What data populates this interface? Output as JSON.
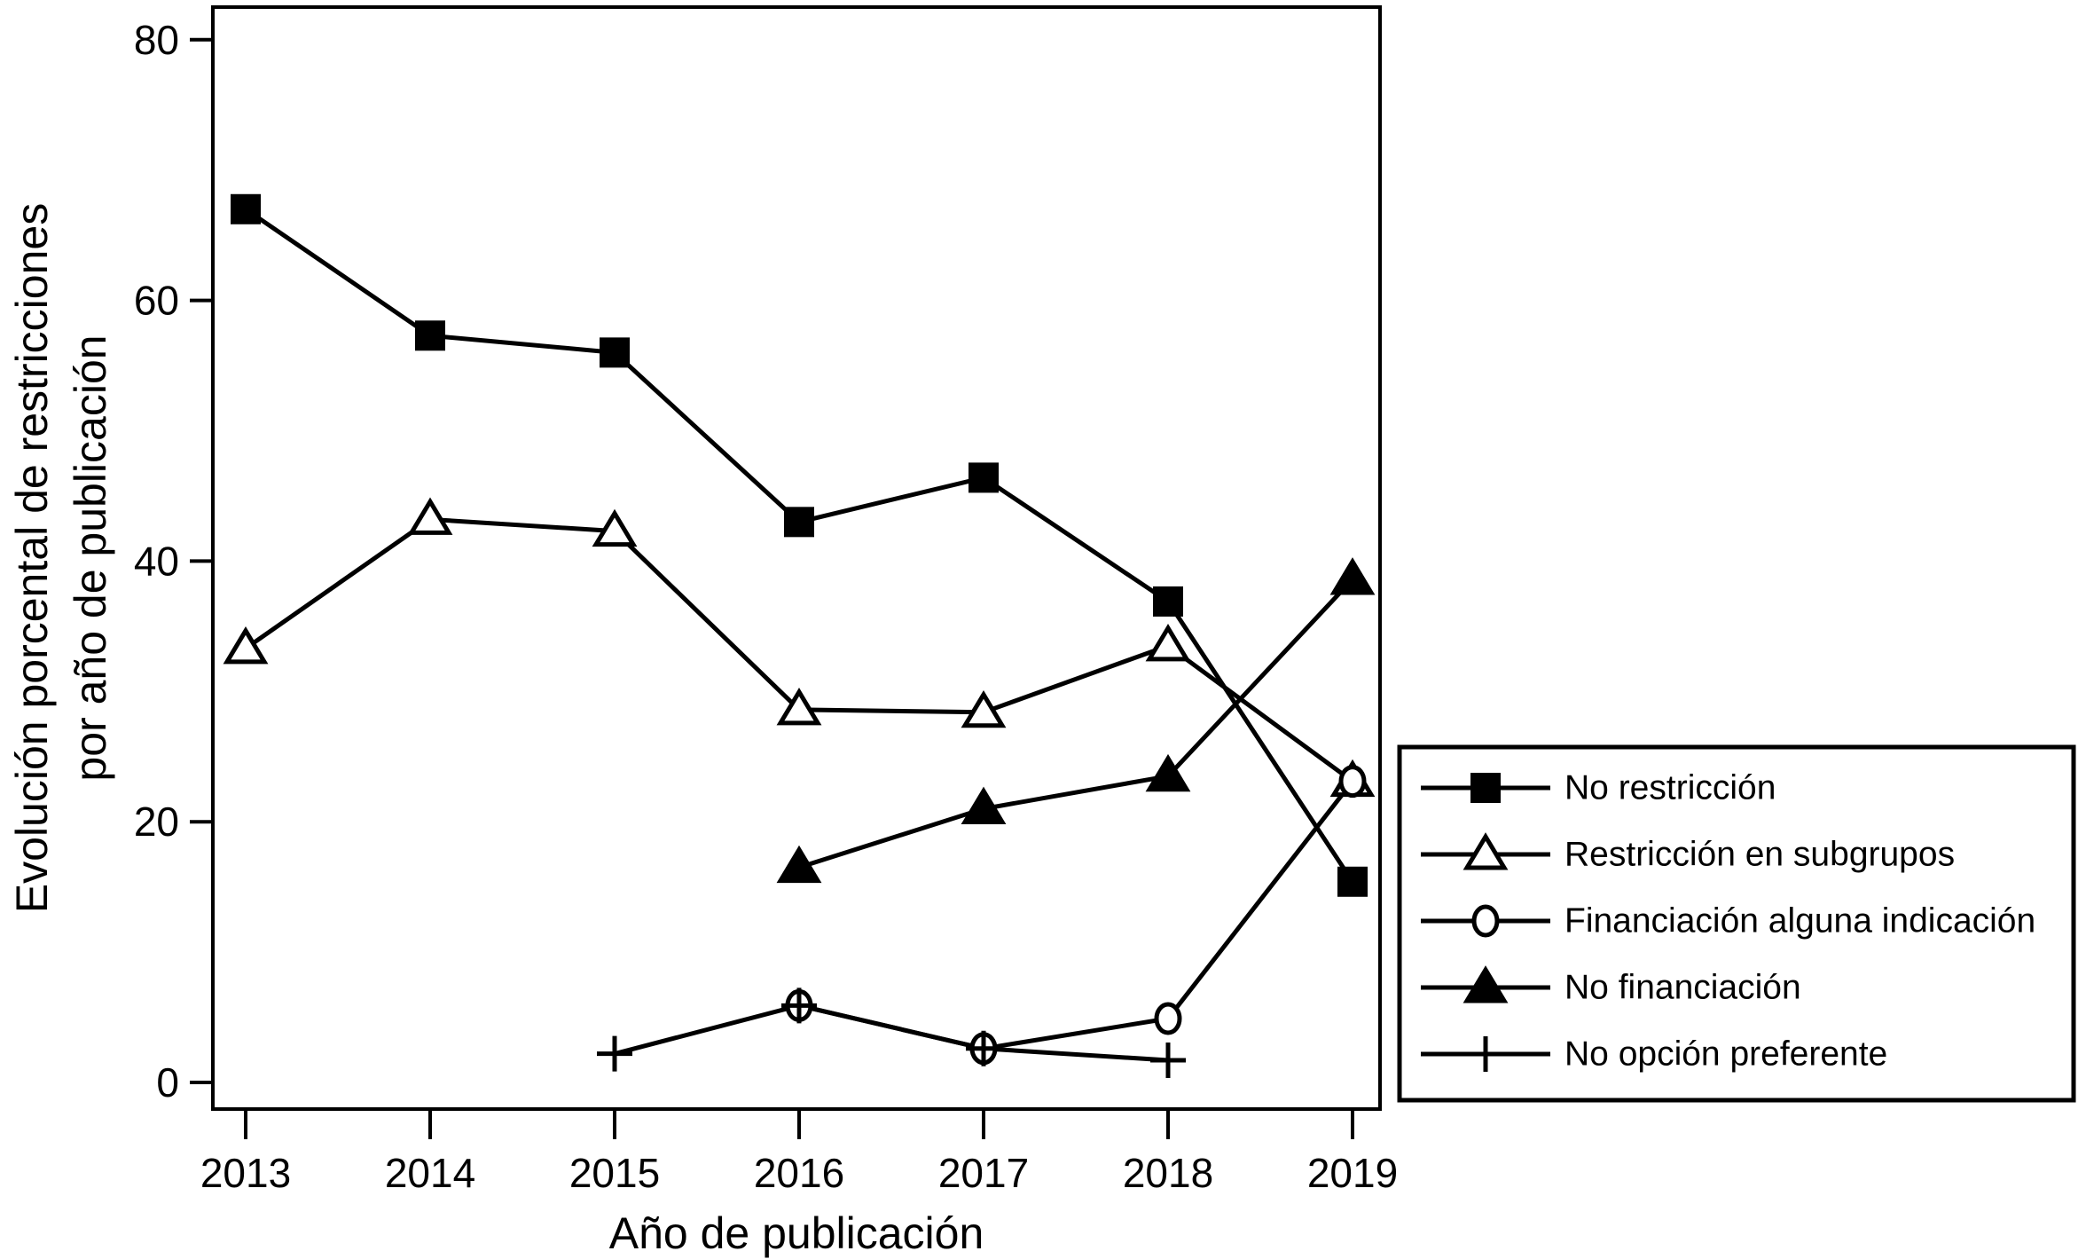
{
  "figure": {
    "background": "#ffffff",
    "ink": "#000000"
  },
  "chart_data": {
    "type": "line",
    "x": [
      2013,
      2014,
      2015,
      2016,
      2017,
      2018,
      2019
    ],
    "xlabel": "Año de publicación",
    "ylabel_line1": "Evolución porcental de restricciones",
    "ylabel_line2": "por año de publicación",
    "yticks": [
      0,
      20,
      40,
      60,
      80
    ],
    "ylim": [
      0,
      82.5
    ],
    "grid": false,
    "legend_position": "outside-right-bottom",
    "series": [
      {
        "name": "No restricción",
        "marker": "filled-square",
        "values": [
          67,
          57.3,
          56,
          43,
          46.4,
          36.9,
          15.4
        ]
      },
      {
        "name": "Restricción en subgrupos",
        "marker": "open-triangle",
        "values": [
          33.3,
          43.2,
          42.3,
          28.6,
          28.4,
          33.5,
          23.1
        ]
      },
      {
        "name": "Financiación alguna indicación",
        "marker": "open-circle",
        "values": [
          null,
          null,
          null,
          5.9,
          2.6,
          4.9,
          23.1
        ]
      },
      {
        "name": "No financiación",
        "marker": "filled-triangle",
        "values": [
          null,
          null,
          null,
          16.5,
          21,
          23.5,
          38.6
        ]
      },
      {
        "name": "No opción preferente",
        "marker": "plus",
        "values": [
          null,
          null,
          2.2,
          5.9,
          2.6,
          1.7,
          null
        ]
      }
    ]
  }
}
